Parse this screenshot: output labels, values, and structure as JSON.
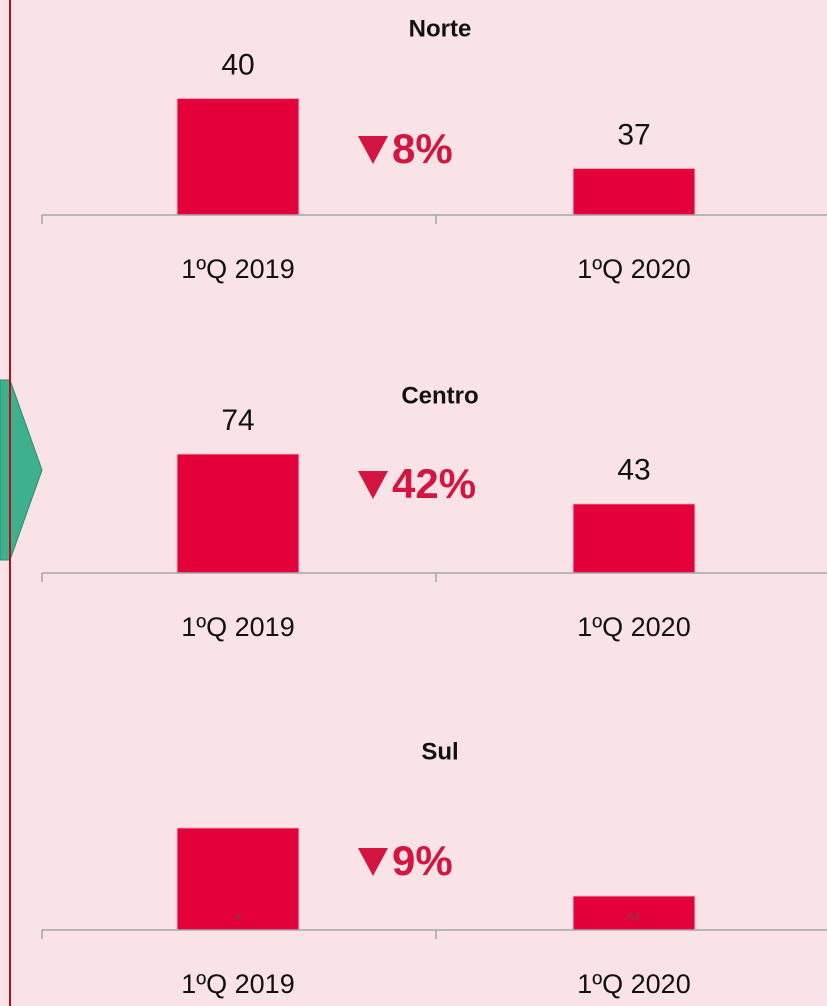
{
  "chart_data": [
    {
      "type": "bar",
      "title": "Norte",
      "categories": [
        "1ºQ 2019",
        "1ºQ 2020"
      ],
      "values": [
        40,
        37
      ],
      "color": "#e4003a",
      "ylim": [
        35,
        41
      ],
      "annotation": "8%"
    },
    {
      "type": "bar",
      "title": "Centro",
      "categories": [
        "1ºQ 2019",
        "1ºQ 2020"
      ],
      "values": [
        74,
        43
      ],
      "color": "#e4003a",
      "ylim": [
        0,
        87
      ],
      "annotation": "42%"
    },
    {
      "type": "bar",
      "title": "Sul",
      "categories": [
        "1ºQ 2019",
        "1ºQ 2020"
      ],
      "values": [
        100,
        91
      ],
      "color": "#e4003a",
      "ylim": [
        86.5,
        105
      ],
      "annotation": "9%",
      "bar_notes": [
        "*",
        "**"
      ],
      "show_value_labels": false
    }
  ]
}
